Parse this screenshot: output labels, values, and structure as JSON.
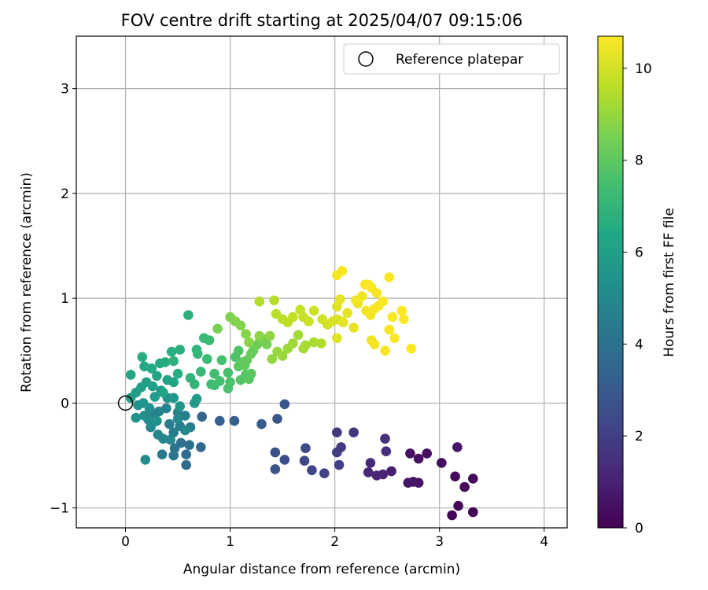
{
  "chart_data": {
    "type": "scatter",
    "title": "FOV centre drift starting at 2025/04/07 09:15:06",
    "xlabel": "Angular distance from reference (arcmin)",
    "ylabel": "Rotation from reference (arcmin)",
    "xlim": [
      -0.47,
      4.22
    ],
    "ylim": [
      -1.19,
      3.5
    ],
    "xticks": [
      0,
      1,
      2,
      3,
      4
    ],
    "yticks": [
      -1,
      0,
      1,
      2,
      3
    ],
    "grid": true,
    "legend": {
      "position": "top-right",
      "entries": [
        "Reference platepar"
      ]
    },
    "colorbar": {
      "label": "Hours from first FF file",
      "colormap": "viridis",
      "range": [
        0,
        10.7
      ],
      "ticks": [
        0,
        2,
        4,
        6,
        8,
        10
      ]
    },
    "reference_point": {
      "x": 0,
      "y": 0,
      "label": "Reference platepar"
    },
    "series": [
      {
        "comment_groups": "points: [x, y, hours]",
        "points": [
          [
            3.12,
            -1.07,
            0.05
          ],
          [
            3.32,
            -1.04,
            0.1
          ],
          [
            3.18,
            -0.98,
            0.15
          ],
          [
            3.24,
            -0.8,
            0.2
          ],
          [
            3.32,
            -0.72,
            0.25
          ],
          [
            3.15,
            -0.7,
            0.3
          ],
          [
            3.02,
            -0.57,
            0.35
          ],
          [
            2.88,
            -0.48,
            0.4
          ],
          [
            2.8,
            -0.53,
            0.45
          ],
          [
            2.72,
            -0.48,
            0.5
          ],
          [
            2.75,
            -0.75,
            0.55
          ],
          [
            2.8,
            -0.76,
            0.6
          ],
          [
            2.7,
            -0.76,
            0.65
          ],
          [
            3.17,
            -0.42,
            0.7
          ],
          [
            2.54,
            -0.65,
            0.9
          ],
          [
            2.46,
            -0.68,
            1.0
          ],
          [
            2.4,
            -0.69,
            1.1
          ],
          [
            2.32,
            -0.66,
            1.2
          ],
          [
            2.34,
            -0.57,
            1.3
          ],
          [
            2.49,
            -0.46,
            1.4
          ],
          [
            2.48,
            -0.34,
            1.5
          ],
          [
            2.18,
            -0.28,
            1.6
          ],
          [
            2.02,
            -0.28,
            1.7
          ],
          [
            2.06,
            -0.42,
            1.8
          ],
          [
            2.02,
            -0.47,
            1.9
          ],
          [
            2.04,
            -0.59,
            2.0
          ],
          [
            1.9,
            -0.67,
            2.1
          ],
          [
            1.78,
            -0.64,
            2.2
          ],
          [
            1.71,
            -0.55,
            2.3
          ],
          [
            1.72,
            -0.43,
            2.4
          ],
          [
            1.52,
            -0.54,
            2.5
          ],
          [
            1.43,
            -0.47,
            2.6
          ],
          [
            1.43,
            -0.63,
            2.7
          ],
          [
            1.45,
            -0.15,
            2.85
          ],
          [
            1.52,
            -0.01,
            2.95
          ],
          [
            1.3,
            -0.2,
            3.05
          ],
          [
            1.04,
            -0.17,
            3.2
          ],
          [
            0.9,
            -0.17,
            3.3
          ],
          [
            0.73,
            -0.13,
            3.45
          ],
          [
            0.72,
            -0.42,
            3.6
          ],
          [
            0.58,
            -0.59,
            3.7
          ],
          [
            0.58,
            -0.49,
            3.8
          ],
          [
            0.61,
            -0.4,
            3.9
          ],
          [
            0.53,
            -0.38,
            4.0
          ],
          [
            0.47,
            -0.43,
            4.1
          ],
          [
            0.46,
            -0.5,
            4.2
          ],
          [
            0.35,
            -0.49,
            4.3
          ],
          [
            0.46,
            -0.28,
            4.35
          ],
          [
            0.42,
            -0.2,
            4.4
          ],
          [
            0.52,
            -0.22,
            4.45
          ],
          [
            0.62,
            -0.23,
            4.5
          ],
          [
            0.57,
            -0.12,
            4.55
          ],
          [
            0.5,
            -0.09,
            4.6
          ],
          [
            0.39,
            -0.05,
            4.65
          ],
          [
            0.32,
            -0.08,
            4.7
          ],
          [
            0.27,
            -0.1,
            4.75
          ],
          [
            0.24,
            -0.23,
            4.8
          ],
          [
            0.31,
            -0.3,
            4.85
          ],
          [
            0.36,
            -0.34,
            4.9
          ],
          [
            0.43,
            -0.35,
            4.95
          ],
          [
            0.5,
            -0.15,
            5.0
          ],
          [
            0.57,
            -0.26,
            5.05
          ],
          [
            0.19,
            -0.54,
            5.1
          ],
          [
            0.25,
            -0.2,
            5.15
          ],
          [
            0.22,
            -0.16,
            5.2
          ],
          [
            0.18,
            -0.12,
            5.25
          ],
          [
            0.23,
            -0.05,
            5.3
          ],
          [
            0.3,
            -0.17,
            5.35
          ],
          [
            0.12,
            -0.02,
            5.4
          ],
          [
            0.1,
            -0.14,
            5.45
          ],
          [
            0.17,
            0.0,
            5.5
          ],
          [
            0.4,
            0.05,
            5.55
          ],
          [
            0.46,
            0.05,
            5.6
          ],
          [
            0.52,
            -0.03,
            5.65
          ],
          [
            0.66,
            0.0,
            5.7
          ],
          [
            0.68,
            0.04,
            5.75
          ],
          [
            0.34,
            0.12,
            5.8
          ],
          [
            0.28,
            0.06,
            5.85
          ],
          [
            0.05,
            0.05,
            5.9
          ],
          [
            0.1,
            0.1,
            5.95
          ],
          [
            0.15,
            0.15,
            6.0
          ],
          [
            0.2,
            0.2,
            6.05
          ],
          [
            0.26,
            0.16,
            6.1
          ],
          [
            0.4,
            0.22,
            6.15
          ],
          [
            0.46,
            0.2,
            6.2
          ],
          [
            0.3,
            0.26,
            6.25
          ],
          [
            0.36,
            0.1,
            6.3
          ],
          [
            0.05,
            0.27,
            6.35
          ],
          [
            0.18,
            0.35,
            6.4
          ],
          [
            0.25,
            0.33,
            6.45
          ],
          [
            0.33,
            0.38,
            6.5
          ],
          [
            0.38,
            0.39,
            6.55
          ],
          [
            0.16,
            0.44,
            6.6
          ],
          [
            0.5,
            0.28,
            6.65
          ],
          [
            0.44,
            0.49,
            6.7
          ],
          [
            0.52,
            0.51,
            6.75
          ],
          [
            0.6,
            0.84,
            6.8
          ],
          [
            0.46,
            0.4,
            6.85
          ],
          [
            0.68,
            0.51,
            6.9
          ],
          [
            0.62,
            0.24,
            6.95
          ],
          [
            0.66,
            0.18,
            7.0
          ],
          [
            0.69,
            0.47,
            7.05
          ],
          [
            0.72,
            0.3,
            7.1
          ],
          [
            0.75,
            0.62,
            7.15
          ],
          [
            0.78,
            0.42,
            7.2
          ],
          [
            0.8,
            0.6,
            7.25
          ],
          [
            0.82,
            0.18,
            7.3
          ],
          [
            0.85,
            0.28,
            7.35
          ],
          [
            0.85,
            0.17,
            7.4
          ],
          [
            0.9,
            0.21,
            7.45
          ],
          [
            0.92,
            0.41,
            7.5
          ],
          [
            0.98,
            0.29,
            7.55
          ],
          [
            0.98,
            0.14,
            7.6
          ],
          [
            1.0,
            0.2,
            7.65
          ],
          [
            1.05,
            0.44,
            7.7
          ],
          [
            1.08,
            0.5,
            7.75
          ],
          [
            1.1,
            0.22,
            7.8
          ],
          [
            1.15,
            0.27,
            7.85
          ],
          [
            1.18,
            0.23,
            7.9
          ],
          [
            1.2,
            0.28,
            7.95
          ],
          [
            1.08,
            0.35,
            8.0
          ],
          [
            1.12,
            0.39,
            8.05
          ],
          [
            1.14,
            0.36,
            8.1
          ],
          [
            1.16,
            0.41,
            8.15
          ],
          [
            1.2,
            0.47,
            8.2
          ],
          [
            1.22,
            0.5,
            8.25
          ],
          [
            1.25,
            0.55,
            8.3
          ],
          [
            1.28,
            0.58,
            8.35
          ],
          [
            1.3,
            0.62,
            8.4
          ],
          [
            1.32,
            0.6,
            8.45
          ],
          [
            1.35,
            0.56,
            8.5
          ],
          [
            0.88,
            0.71,
            8.55
          ],
          [
            1.0,
            0.82,
            8.6
          ],
          [
            1.05,
            0.78,
            8.65
          ],
          [
            1.1,
            0.74,
            8.7
          ],
          [
            1.15,
            0.66,
            8.75
          ],
          [
            1.18,
            0.58,
            8.8
          ],
          [
            1.28,
            0.64,
            8.85
          ],
          [
            1.38,
            0.64,
            8.9
          ],
          [
            1.4,
            0.42,
            8.95
          ],
          [
            1.45,
            0.49,
            9.0
          ],
          [
            1.5,
            0.45,
            9.05
          ],
          [
            1.55,
            0.52,
            9.1
          ],
          [
            1.6,
            0.57,
            9.15
          ],
          [
            1.65,
            0.65,
            9.2
          ],
          [
            1.7,
            0.52,
            9.25
          ],
          [
            1.72,
            0.55,
            9.3
          ],
          [
            1.8,
            0.58,
            9.35
          ],
          [
            1.87,
            0.57,
            9.4
          ],
          [
            1.28,
            0.97,
            9.45
          ],
          [
            1.42,
            0.98,
            9.5
          ],
          [
            1.44,
            0.85,
            9.55
          ],
          [
            1.5,
            0.8,
            9.6
          ],
          [
            1.55,
            0.77,
            9.65
          ],
          [
            1.6,
            0.82,
            9.7
          ],
          [
            1.67,
            0.89,
            9.75
          ],
          [
            1.7,
            0.82,
            9.8
          ],
          [
            1.75,
            0.78,
            9.85
          ],
          [
            1.8,
            0.88,
            9.9
          ],
          [
            1.88,
            0.8,
            9.95
          ],
          [
            1.93,
            0.75,
            10.0
          ],
          [
            1.98,
            0.78,
            10.05
          ],
          [
            2.02,
            0.8,
            10.1
          ],
          [
            2.07,
            0.78,
            10.15
          ],
          [
            2.02,
            0.92,
            10.2
          ],
          [
            2.05,
            0.99,
            10.25
          ],
          [
            2.12,
            0.86,
            10.3
          ],
          [
            2.18,
            0.72,
            10.35
          ],
          [
            2.22,
            0.95,
            10.4
          ],
          [
            2.26,
            1.02,
            10.45
          ],
          [
            2.3,
            0.88,
            10.5
          ],
          [
            2.34,
            0.84,
            10.55
          ],
          [
            2.38,
            0.9,
            10.6
          ],
          [
            2.42,
            0.93,
            10.62
          ],
          [
            2.46,
            0.97,
            10.65
          ],
          [
            2.35,
            1.1,
            10.6
          ],
          [
            2.4,
            1.05,
            10.55
          ],
          [
            2.2,
            0.98,
            10.5
          ],
          [
            2.02,
            1.22,
            10.55
          ],
          [
            2.07,
            1.26,
            10.6
          ],
          [
            2.29,
            1.13,
            10.62
          ],
          [
            2.32,
            1.13,
            10.65
          ],
          [
            2.52,
            1.2,
            10.66
          ],
          [
            2.35,
            0.6,
            10.5
          ],
          [
            2.38,
            0.56,
            10.55
          ],
          [
            2.48,
            0.5,
            10.6
          ],
          [
            2.52,
            0.7,
            10.62
          ],
          [
            2.55,
            0.82,
            10.65
          ],
          [
            2.57,
            0.62,
            10.67
          ],
          [
            2.64,
            0.88,
            10.68
          ],
          [
            2.66,
            0.8,
            10.66
          ],
          [
            2.73,
            0.52,
            10.69
          ],
          [
            2.02,
            0.62,
            10.2
          ],
          [
            2.08,
            0.77,
            10.3
          ]
        ]
      }
    ]
  }
}
